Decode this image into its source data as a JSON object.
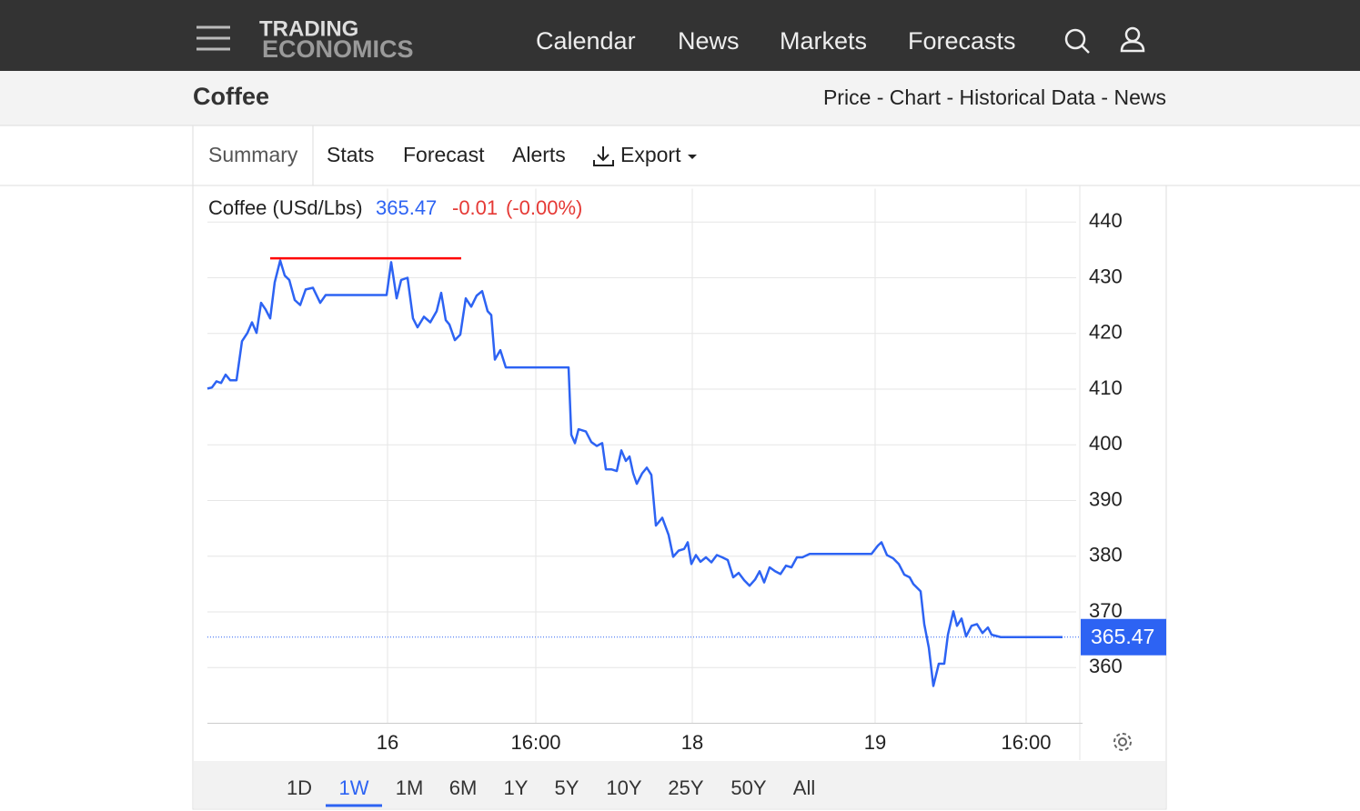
{
  "nav": {
    "logo": [
      "TRADING",
      "ECONOMICS"
    ],
    "links": [
      "Calendar",
      "News",
      "Markets",
      "Forecasts"
    ]
  },
  "header": {
    "title": "Coffee",
    "links": "Price - Chart - Historical Data - News"
  },
  "tabs": [
    "Summary",
    "Stats",
    "Forecast",
    "Alerts",
    "Export"
  ],
  "selected_tab": 0,
  "quote": {
    "name": "Coffee (USd/Lbs)",
    "price": 365.47,
    "change": -0.01,
    "change_pct": "(-0.00%)"
  },
  "chart_data": {
    "type": "line",
    "color": "#2d63f3",
    "x": [
      0,
      5,
      10,
      15,
      20,
      25,
      32,
      38,
      44,
      49,
      54,
      59,
      64,
      69,
      74,
      80,
      85,
      90,
      96,
      102,
      108,
      116,
      124,
      130,
      140,
      162,
      182,
      197,
      202,
      208,
      213,
      220,
      226,
      231,
      238,
      245,
      252,
      257,
      262,
      266,
      272,
      278,
      284,
      290,
      296,
      302,
      308,
      312,
      316,
      322,
      328,
      352,
      397,
      400,
      404,
      408,
      416,
      422,
      428,
      434,
      438,
      444,
      450,
      455,
      460,
      464,
      468,
      472,
      478,
      483,
      488,
      493,
      500,
      507,
      512,
      518,
      524,
      528,
      532,
      537,
      542,
      548,
      554,
      560,
      566,
      572,
      578,
      584,
      590,
      596,
      602,
      607,
      612,
      618,
      624,
      630,
      636,
      642,
      648,
      654,
      662,
      692,
      730,
      737,
      741,
      747,
      754,
      760,
      766,
      772,
      776,
      784,
      788,
      793,
      798,
      804,
      810,
      814,
      820,
      824,
      829,
      834,
      840,
      846,
      852,
      858,
      862,
      872,
      940
    ],
    "values": [
      410.1,
      410.3,
      411.4,
      411.1,
      412.6,
      411.6,
      411.6,
      418.6,
      420.1,
      422.0,
      420.1,
      425.5,
      424.3,
      422.7,
      429.2,
      433.1,
      430.4,
      429.6,
      426.0,
      425.1,
      427.9,
      428.2,
      425.5,
      426.9,
      426.9,
      426.9,
      426.9,
      426.9,
      432.8,
      426.3,
      429.6,
      430.0,
      422.7,
      421.1,
      423.0,
      422.0,
      424.0,
      427.3,
      422.4,
      421.6,
      418.8,
      419.8,
      426.3,
      424.8,
      426.8,
      427.6,
      424.0,
      423.3,
      415.3,
      417.0,
      413.9,
      413.9,
      413.9,
      401.8,
      400.3,
      402.8,
      402.4,
      400.5,
      399.8,
      400.3,
      395.6,
      395.6,
      395.3,
      399.0,
      397.1,
      397.9,
      394.9,
      393.0,
      394.9,
      395.9,
      394.6,
      385.5,
      386.9,
      383.8,
      379.9,
      381.0,
      381.3,
      382.5,
      378.6,
      380.2,
      379.0,
      379.8,
      378.9,
      380.2,
      379.8,
      379.3,
      376.2,
      377.0,
      375.7,
      374.7,
      375.8,
      377.3,
      375.3,
      378.0,
      377.3,
      376.8,
      378.3,
      378.0,
      379.8,
      379.8,
      380.4,
      380.4,
      380.4,
      381.9,
      382.5,
      380.2,
      379.6,
      378.6,
      376.7,
      376.2,
      375.0,
      373.7,
      367.8,
      363.6,
      356.7,
      360.7,
      360.7,
      365.9,
      370.1,
      367.5,
      368.8,
      365.6,
      367.5,
      367.8,
      366.2,
      367.2,
      365.9,
      365.47,
      365.47
    ],
    "xlim": [
      0,
      960
    ],
    "xticks": [
      {
        "value": 198,
        "label": "16"
      },
      {
        "value": 361,
        "label": "16:00"
      },
      {
        "value": 533,
        "label": "18"
      },
      {
        "value": 734,
        "label": "19"
      },
      {
        "value": 900,
        "label": "16:00"
      }
    ],
    "ylim": [
      350,
      446
    ],
    "yticks": [
      360,
      370,
      380,
      390,
      400,
      410,
      420,
      430,
      440
    ],
    "grid": true,
    "last_value": 365.47,
    "max_line": {
      "x": [
        69,
        279
      ],
      "value": 433.5,
      "color": "#ff0000"
    }
  },
  "ranges": [
    "1D",
    "1W",
    "1M",
    "6M",
    "1Y",
    "5Y",
    "10Y",
    "25Y",
    "50Y",
    "All"
  ],
  "selected_range": 1
}
